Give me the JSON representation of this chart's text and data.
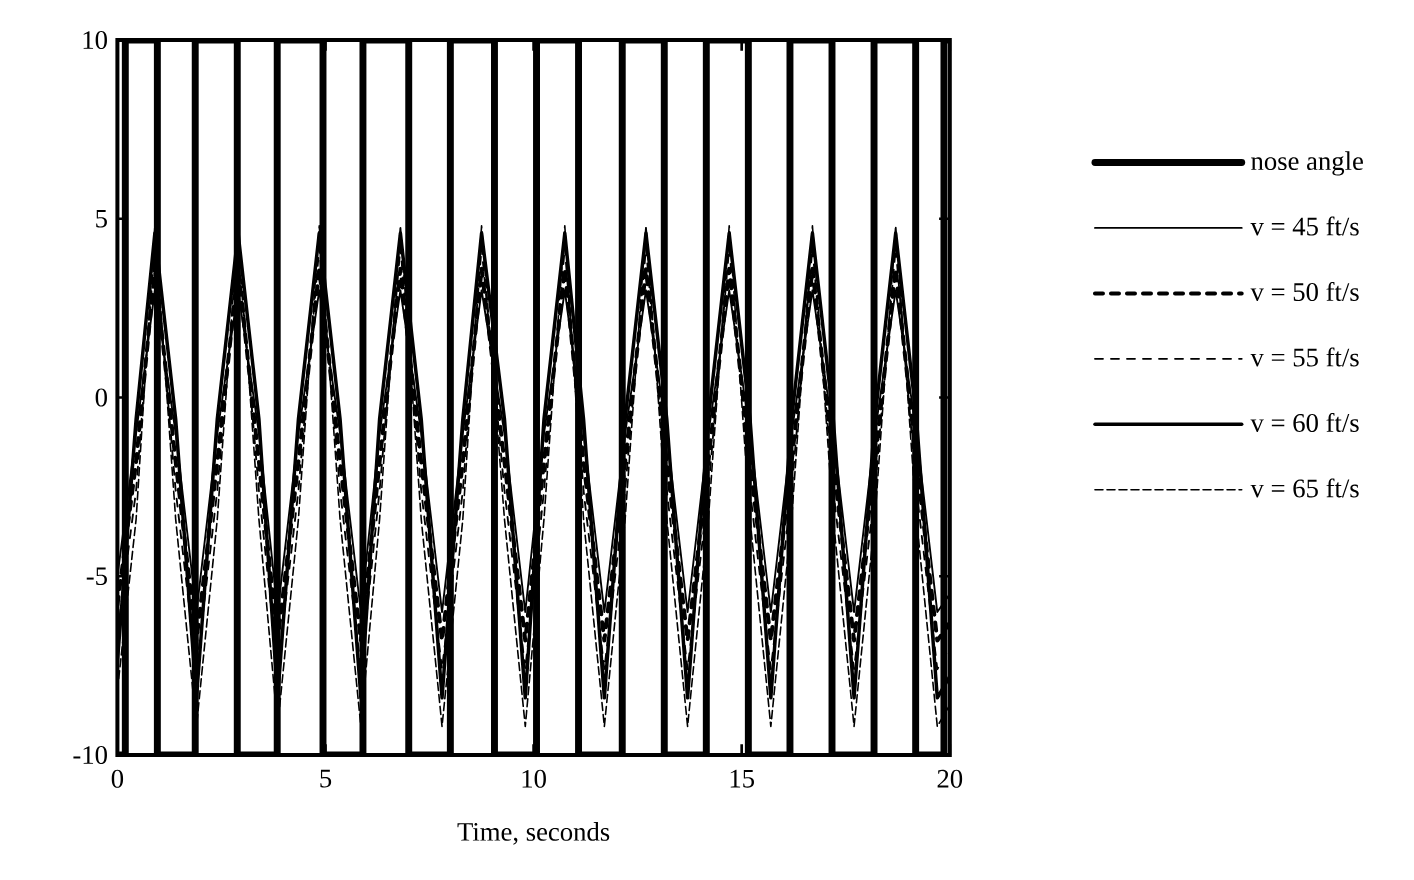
{
  "chart_data": {
    "type": "line",
    "xlabel": "Time, seconds",
    "xlim": [
      0,
      20
    ],
    "xticks": [
      0,
      5,
      10,
      15,
      20
    ],
    "ylim": [
      -10,
      10
    ],
    "yticks": [
      -10,
      -5,
      0,
      5,
      10
    ],
    "legend": "right",
    "grid": false,
    "marker": "none",
    "x": [
      0,
      0.45,
      0.9,
      1.4,
      1.9,
      2.4,
      2.9,
      3.4,
      3.85,
      4.35,
      4.85,
      5.35,
      5.85,
      6.3,
      6.8,
      7.3,
      7.8,
      8.3,
      8.75,
      9.3,
      9.8,
      10.25,
      10.75,
      11.2,
      11.7,
      12.2,
      12.7,
      13.2,
      13.7,
      14.2,
      14.7,
      15.2,
      15.7,
      16.2,
      16.7,
      17.2,
      17.7,
      18.2,
      18.7,
      19.2,
      19.7,
      20
    ],
    "series": [
      {
        "name": "nose angle",
        "type": "step",
        "color": "#000000",
        "line_style": "solid",
        "x": [
          0,
          0.19,
          0.96,
          1.87,
          2.88,
          3.84,
          4.94,
          5.9,
          7.0,
          8.0,
          9.06,
          10.07,
          11.08,
          12.13,
          13.14,
          14.15,
          15.16,
          16.16,
          17.17,
          18.18,
          19.18,
          19.86,
          20
        ],
        "values": [
          -10,
          10,
          -10,
          10,
          -10,
          10,
          -10,
          10,
          -10,
          10,
          -10,
          10,
          -10,
          10,
          -10,
          10,
          -10,
          10,
          -10,
          10,
          -10,
          10,
          10
        ]
      },
      {
        "name": "v = 45 ft/s",
        "color": "#000000",
        "line_style": "solid",
        "values": [
          -5,
          -1,
          3,
          -1,
          -6,
          -1,
          3,
          -1,
          -6,
          -1,
          3,
          -1,
          -6,
          -1,
          3,
          -1,
          -6,
          -1,
          3,
          -1,
          -6,
          -1,
          3,
          -1,
          -6,
          -1,
          3,
          -1,
          -6,
          -1,
          3,
          -1,
          -6,
          -1,
          3,
          -1,
          -6,
          -1,
          3,
          -1,
          -6,
          -5.5
        ]
      },
      {
        "name": "v = 50 ft/s",
        "color": "#000000",
        "line_style": "dashed",
        "values": [
          -5.8,
          -1.8,
          3.6,
          -1.8,
          -6.8,
          -1.8,
          3.6,
          -1.8,
          -6.8,
          -1.8,
          3.6,
          -1.8,
          -6.8,
          -1.8,
          3.6,
          -1.8,
          -6.8,
          -1.8,
          3.6,
          -1.8,
          -6.8,
          -1.8,
          3.6,
          -1.8,
          -6.8,
          -1.8,
          3.6,
          -1.8,
          -6.8,
          -1.8,
          3.6,
          -1.8,
          -6.8,
          -1.8,
          3.6,
          -1.8,
          -6.8,
          -1.8,
          3.6,
          -1.8,
          -6.8,
          -6.3
        ]
      },
      {
        "name": "v = 55 ft/s",
        "color": "#000000",
        "line_style": "dashed",
        "values": [
          -6.6,
          -2.6,
          4.2,
          -2.6,
          -7.6,
          -2.6,
          4.2,
          -2.6,
          -7.6,
          -2.6,
          4.2,
          -2.6,
          -7.6,
          -2.6,
          4.2,
          -2.6,
          -7.6,
          -2.6,
          4.2,
          -2.6,
          -7.6,
          -2.6,
          4.2,
          -2.6,
          -7.6,
          -2.6,
          4.2,
          -2.6,
          -7.6,
          -2.6,
          4.2,
          -2.6,
          -7.6,
          -2.6,
          4.2,
          -2.6,
          -7.6,
          -2.6,
          4.2,
          -2.6,
          -7.6,
          -7
        ]
      },
      {
        "name": "v = 60 ft/s",
        "color": "#000000",
        "line_style": "solid",
        "values": [
          -7.4,
          -0.6,
          4.6,
          -0.6,
          -8.4,
          -0.6,
          4.6,
          -0.6,
          -8.4,
          -0.6,
          4.6,
          -0.6,
          -8.4,
          -0.6,
          4.6,
          -0.6,
          -8.4,
          -0.6,
          4.6,
          -0.6,
          -8.4,
          -0.6,
          4.6,
          -0.6,
          -8.4,
          -0.6,
          4.6,
          -0.6,
          -8.4,
          -0.6,
          4.6,
          -0.6,
          -8.4,
          -0.6,
          4.6,
          -0.6,
          -8.4,
          -0.6,
          4.6,
          -0.6,
          -8.4,
          -7.8
        ]
      },
      {
        "name": "v = 65 ft/s",
        "color": "#000000",
        "line_style": "dotted",
        "values": [
          -8.2,
          -3.4,
          4.8,
          -3.4,
          -9.2,
          -3.4,
          4.8,
          -3.4,
          -9.2,
          -3.4,
          4.8,
          -3.4,
          -9.2,
          -3.4,
          4.8,
          -3.4,
          -9.2,
          -3.4,
          4.8,
          -3.4,
          -9.2,
          -3.4,
          4.8,
          -3.4,
          -9.2,
          -3.4,
          4.8,
          -3.4,
          -9.2,
          -3.4,
          4.8,
          -3.4,
          -9.2,
          -3.4,
          4.8,
          -3.4,
          -9.2,
          -3.4,
          4.8,
          -3.4,
          -9.2,
          -8.6
        ]
      }
    ]
  }
}
